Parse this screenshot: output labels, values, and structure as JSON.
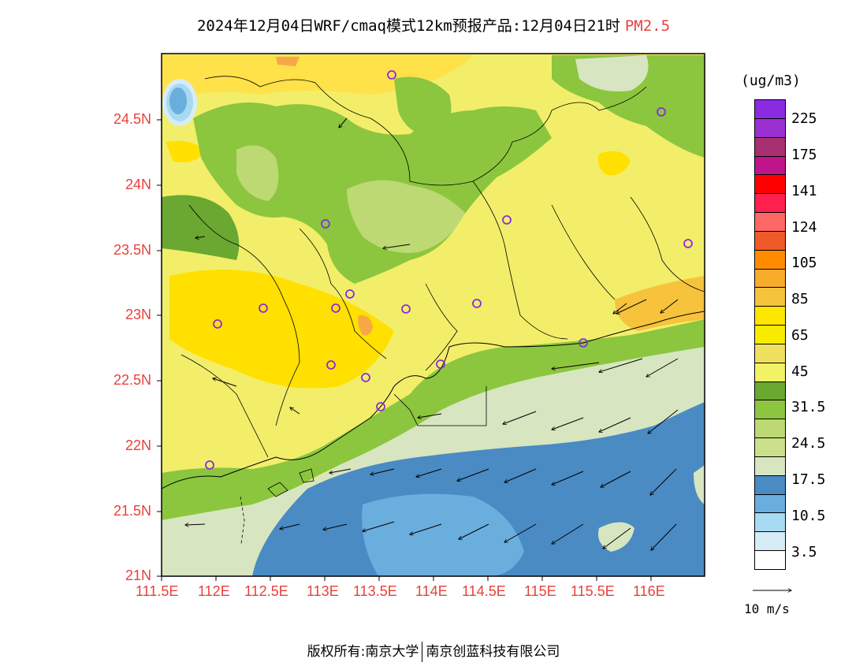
{
  "header": {
    "title": "2024年12月04日WRF/cmaq模式12km预报产品:12月04日21时",
    "pollutant": "PM2.5"
  },
  "axes": {
    "lat_labels": [
      "24.5N",
      "24N",
      "23.5N",
      "23N",
      "22.5N",
      "22N",
      "21.5N",
      "21N"
    ],
    "lon_labels": [
      "111.5E",
      "112E",
      "112.5E",
      "113E",
      "113.5E",
      "114E",
      "114.5E",
      "115E",
      "115.5E",
      "116E"
    ]
  },
  "colorbar": {
    "unit": "(ug/m3)",
    "labels": [
      "225",
      "175",
      "141",
      "124",
      "105",
      "85",
      "65",
      "45",
      "31.5",
      "24.5",
      "17.5",
      "10.5",
      "3.5"
    ],
    "colors": [
      "#8a2be2",
      "#9b30d0",
      "#a83070",
      "#c0148c",
      "#ff0000",
      "#ff2050",
      "#ff6666",
      "#f05a28",
      "#ff8c00",
      "#f9ac2a",
      "#f6c33c",
      "#ffe600",
      "#f9eb00",
      "#f0e060",
      "#f2f266",
      "#6aa832",
      "#8cc63f",
      "#bcd974",
      "#cbe08a",
      "#d7e6c0",
      "#4a8bc4",
      "#6aaede",
      "#a8daf2",
      "#d6edf8",
      "#ffffff"
    ]
  },
  "wind_reference": {
    "label": "10 m/s"
  },
  "footer": {
    "left": "版权所有:南京大学",
    "right": "南京创蓝科技有限公司"
  }
}
